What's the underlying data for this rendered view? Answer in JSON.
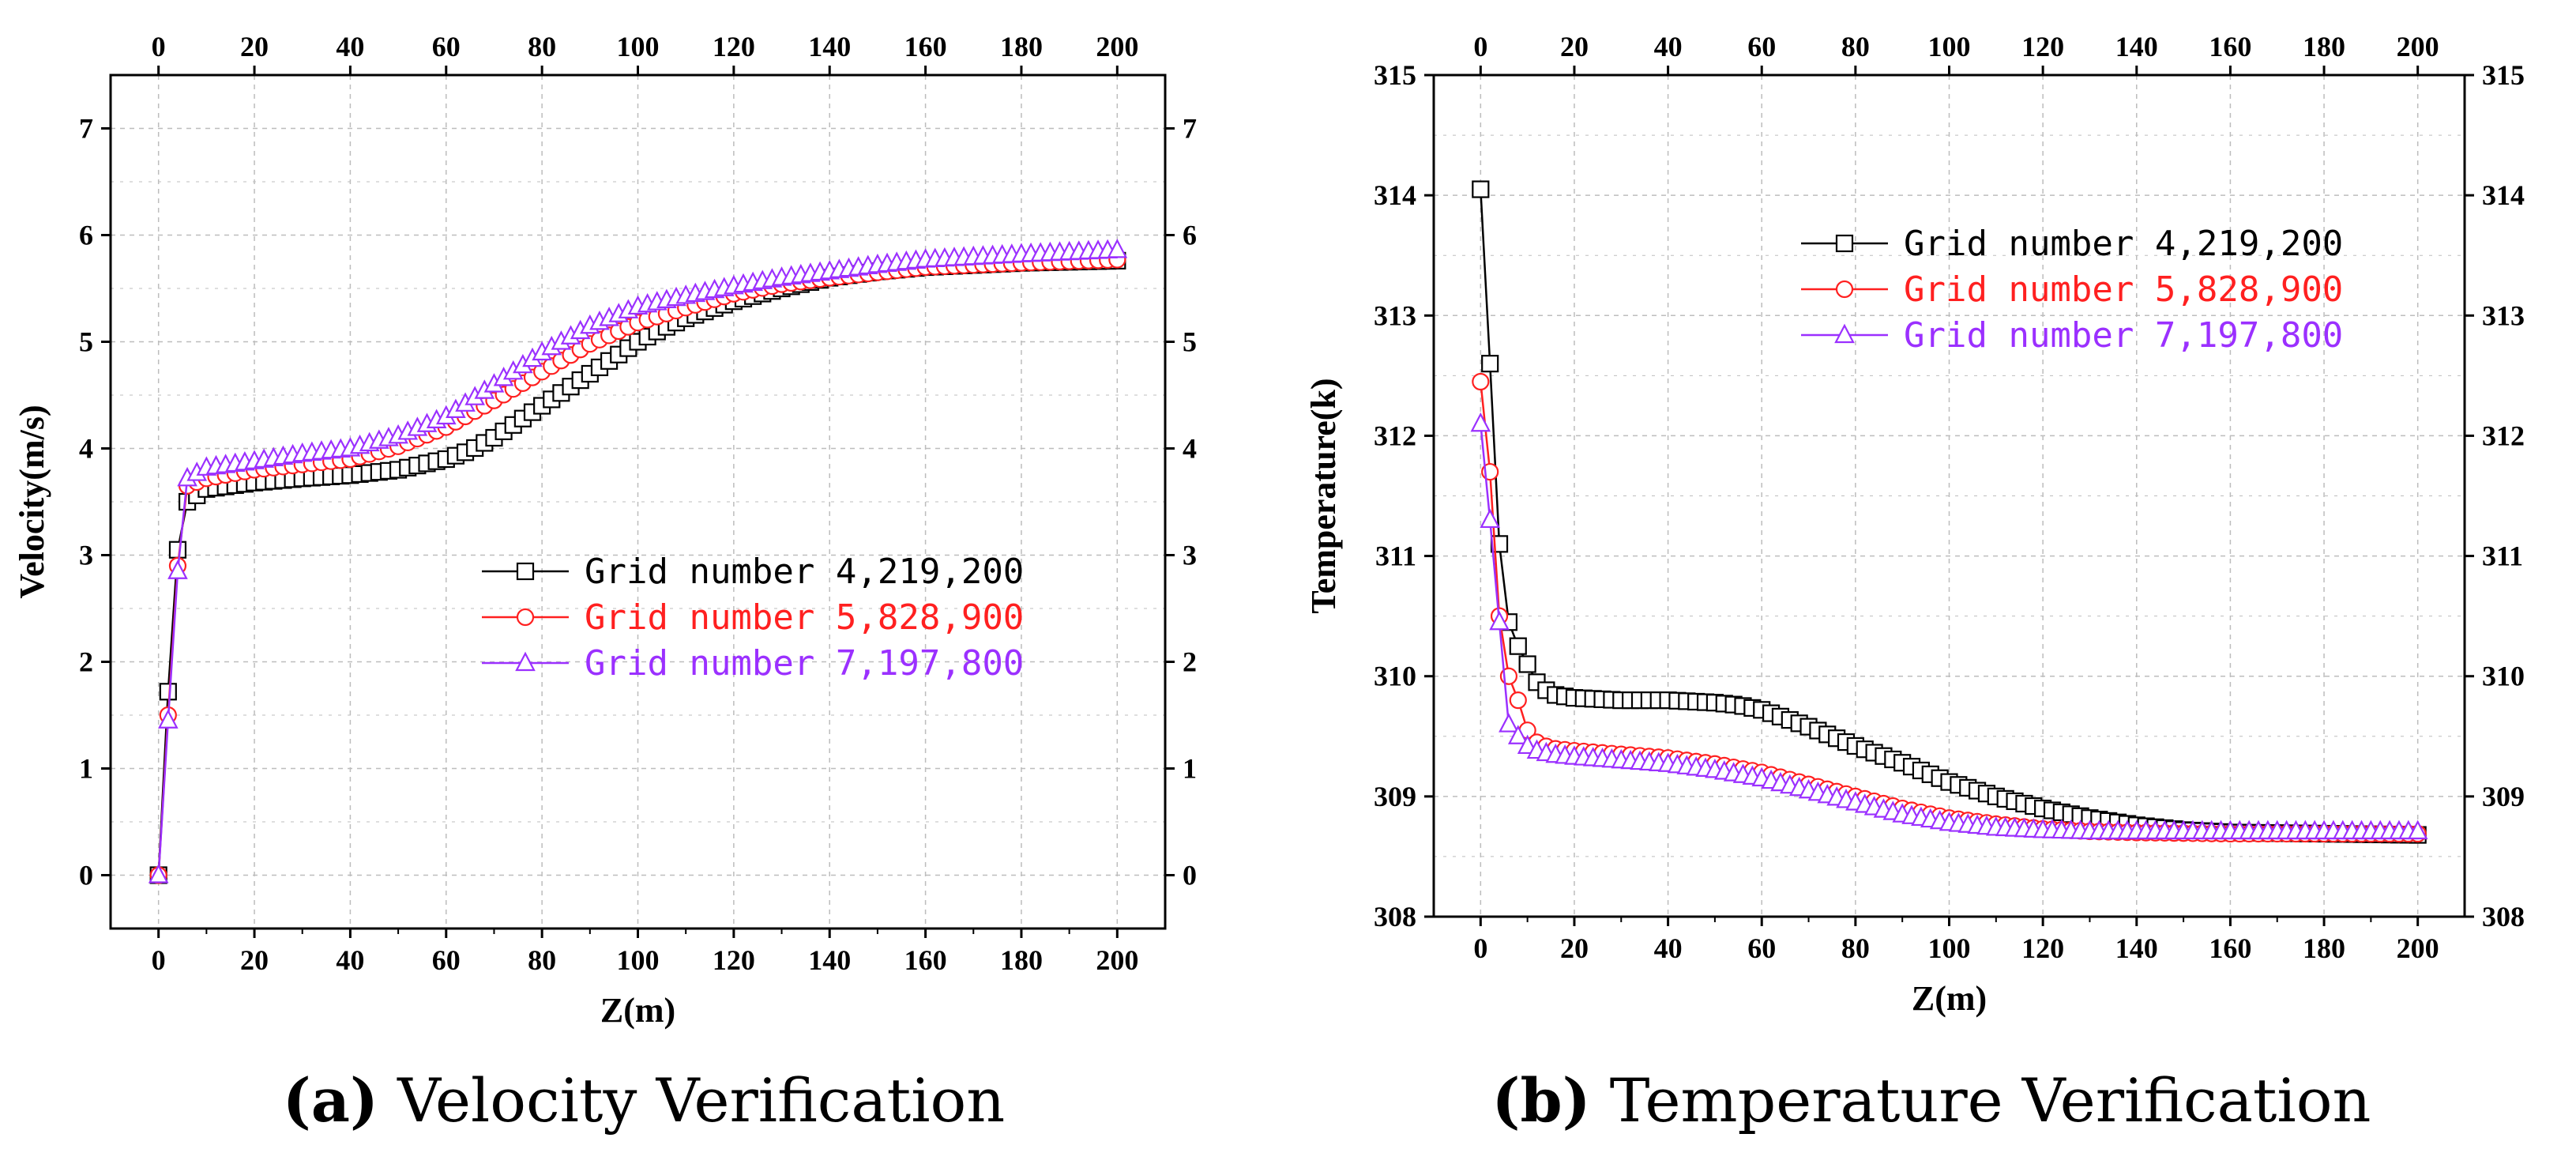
{
  "colors": {
    "series1": "#000000",
    "series2": "#ff2020",
    "series3": "#9b30ff",
    "grid": "#bdbdbd"
  },
  "chart_data": [
    {
      "id": "a",
      "type": "line",
      "caption_letter": "(a)",
      "caption_text": " Velocity Verification",
      "xlabel": "Z(m)",
      "ylabel": "Velocity(m/s)",
      "xlim": [
        -10,
        210
      ],
      "ylim": [
        -0.5,
        7.5
      ],
      "xticks": [
        0,
        20,
        40,
        60,
        80,
        100,
        120,
        140,
        160,
        180,
        200
      ],
      "yticks": [
        0,
        1,
        2,
        3,
        4,
        5,
        6,
        7
      ],
      "legend_position": "center-right",
      "grid": true,
      "series": [
        {
          "name": "Grid number 4,219,200",
          "marker": "square",
          "color": "#000000",
          "points": [
            [
              0,
              0
            ],
            [
              2,
              1.72
            ],
            [
              4,
              3.05
            ],
            [
              6,
              3.5
            ],
            [
              10,
              3.62
            ],
            [
              20,
              3.68
            ],
            [
              30,
              3.72
            ],
            [
              40,
              3.75
            ],
            [
              50,
              3.8
            ],
            [
              55,
              3.85
            ],
            [
              60,
              3.9
            ],
            [
              65,
              3.98
            ],
            [
              70,
              4.1
            ],
            [
              75,
              4.25
            ],
            [
              80,
              4.4
            ],
            [
              85,
              4.55
            ],
            [
              90,
              4.7
            ],
            [
              95,
              4.85
            ],
            [
              100,
              5.0
            ],
            [
              105,
              5.12
            ],
            [
              110,
              5.22
            ],
            [
              120,
              5.38
            ],
            [
              130,
              5.5
            ],
            [
              140,
              5.6
            ],
            [
              150,
              5.66
            ],
            [
              160,
              5.7
            ],
            [
              180,
              5.74
            ],
            [
              200,
              5.76
            ]
          ]
        },
        {
          "name": "Grid number 5,828,900",
          "marker": "circle",
          "color": "#ff2020",
          "points": [
            [
              0,
              0
            ],
            [
              2,
              1.5
            ],
            [
              4,
              2.9
            ],
            [
              6,
              3.65
            ],
            [
              10,
              3.72
            ],
            [
              20,
              3.8
            ],
            [
              30,
              3.85
            ],
            [
              40,
              3.9
            ],
            [
              50,
              4.02
            ],
            [
              60,
              4.2
            ],
            [
              70,
              4.45
            ],
            [
              80,
              4.72
            ],
            [
              90,
              4.98
            ],
            [
              100,
              5.18
            ],
            [
              110,
              5.32
            ],
            [
              120,
              5.45
            ],
            [
              130,
              5.54
            ],
            [
              140,
              5.6
            ],
            [
              150,
              5.65
            ],
            [
              160,
              5.7
            ],
            [
              180,
              5.74
            ],
            [
              200,
              5.77
            ]
          ]
        },
        {
          "name": "Grid number 7,197,800",
          "marker": "triangle",
          "color": "#9b30ff",
          "points": [
            [
              0,
              0
            ],
            [
              2,
              1.45
            ],
            [
              4,
              2.85
            ],
            [
              6,
              3.72
            ],
            [
              10,
              3.82
            ],
            [
              20,
              3.88
            ],
            [
              30,
              3.95
            ],
            [
              40,
              4.0
            ],
            [
              50,
              4.12
            ],
            [
              60,
              4.3
            ],
            [
              70,
              4.6
            ],
            [
              80,
              4.9
            ],
            [
              90,
              5.15
            ],
            [
              100,
              5.33
            ],
            [
              110,
              5.43
            ],
            [
              120,
              5.52
            ],
            [
              130,
              5.6
            ],
            [
              140,
              5.66
            ],
            [
              150,
              5.72
            ],
            [
              160,
              5.77
            ],
            [
              180,
              5.82
            ],
            [
              200,
              5.86
            ]
          ]
        }
      ]
    },
    {
      "id": "b",
      "type": "line",
      "caption_letter": "(b)",
      "caption_text": " Temperature Verification",
      "xlabel": "Z(m)",
      "ylabel": "Temperature(k)",
      "xlim": [
        -10,
        210
      ],
      "ylim": [
        308,
        315
      ],
      "xticks": [
        0,
        20,
        40,
        60,
        80,
        100,
        120,
        140,
        160,
        180,
        200
      ],
      "yticks": [
        308,
        309,
        310,
        311,
        312,
        313,
        314,
        315
      ],
      "legend_position": "top-right",
      "grid": true,
      "series": [
        {
          "name": "Grid number 4,219,200",
          "marker": "square",
          "color": "#000000",
          "points": [
            [
              0,
              314.05
            ],
            [
              2,
              312.6
            ],
            [
              4,
              311.1
            ],
            [
              6,
              310.45
            ],
            [
              8,
              310.25
            ],
            [
              10,
              310.1
            ],
            [
              12,
              309.95
            ],
            [
              15,
              309.85
            ],
            [
              20,
              309.82
            ],
            [
              30,
              309.8
            ],
            [
              40,
              309.8
            ],
            [
              50,
              309.78
            ],
            [
              55,
              309.76
            ],
            [
              60,
              309.72
            ],
            [
              65,
              309.65
            ],
            [
              70,
              309.58
            ],
            [
              75,
              309.5
            ],
            [
              80,
              309.42
            ],
            [
              85,
              309.35
            ],
            [
              90,
              309.28
            ],
            [
              95,
              309.2
            ],
            [
              100,
              309.12
            ],
            [
              110,
              309.0
            ],
            [
              120,
              308.9
            ],
            [
              130,
              308.82
            ],
            [
              140,
              308.76
            ],
            [
              150,
              308.72
            ],
            [
              160,
              308.7
            ],
            [
              180,
              308.69
            ],
            [
              200,
              308.68
            ]
          ]
        },
        {
          "name": "Grid number 5,828,900",
          "marker": "circle",
          "color": "#ff2020",
          "points": [
            [
              0,
              312.45
            ],
            [
              2,
              311.7
            ],
            [
              4,
              310.5
            ],
            [
              6,
              310.0
            ],
            [
              8,
              309.8
            ],
            [
              10,
              309.55
            ],
            [
              12,
              309.45
            ],
            [
              15,
              309.4
            ],
            [
              20,
              309.38
            ],
            [
              30,
              309.35
            ],
            [
              40,
              309.32
            ],
            [
              50,
              309.27
            ],
            [
              60,
              309.2
            ],
            [
              70,
              309.1
            ],
            [
              80,
              309.0
            ],
            [
              90,
              308.9
            ],
            [
              100,
              308.82
            ],
            [
              110,
              308.77
            ],
            [
              120,
              308.73
            ],
            [
              130,
              308.71
            ],
            [
              140,
              308.7
            ],
            [
              160,
              308.69
            ],
            [
              180,
              308.69
            ],
            [
              200,
              308.69
            ]
          ]
        },
        {
          "name": "Grid number 7,197,800",
          "marker": "triangle",
          "color": "#9b30ff",
          "points": [
            [
              0,
              312.1
            ],
            [
              2,
              311.3
            ],
            [
              4,
              310.45
            ],
            [
              6,
              309.6
            ],
            [
              8,
              309.5
            ],
            [
              10,
              309.42
            ],
            [
              12,
              309.38
            ],
            [
              15,
              309.35
            ],
            [
              20,
              309.33
            ],
            [
              30,
              309.3
            ],
            [
              40,
              309.27
            ],
            [
              50,
              309.22
            ],
            [
              60,
              309.15
            ],
            [
              70,
              309.05
            ],
            [
              80,
              308.95
            ],
            [
              90,
              308.85
            ],
            [
              100,
              308.78
            ],
            [
              110,
              308.74
            ],
            [
              120,
              308.72
            ],
            [
              130,
              308.71
            ],
            [
              140,
              308.71
            ],
            [
              160,
              308.71
            ],
            [
              180,
              308.71
            ],
            [
              200,
              308.71
            ]
          ]
        }
      ]
    }
  ]
}
